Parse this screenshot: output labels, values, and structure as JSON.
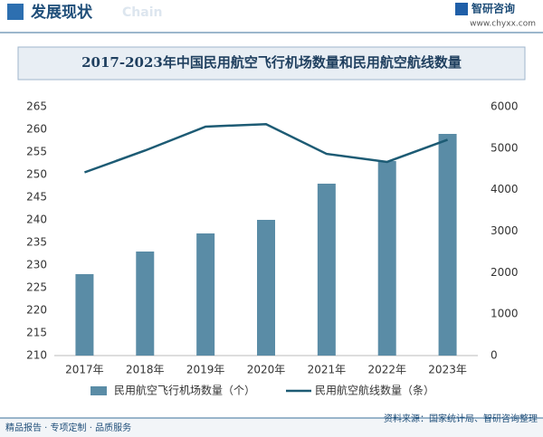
{
  "header": {
    "title": "发展现状",
    "watermark": "Chain",
    "logo": "智研咨询",
    "url": "www.chyxx.com"
  },
  "chart_data": {
    "type": "bar",
    "title": "2017-2023年中国民用航空飞行机场数量和民用航空航线数量",
    "categories": [
      "2017年",
      "2018年",
      "2019年",
      "2020年",
      "2021年",
      "2022年",
      "2023年"
    ],
    "series": [
      {
        "name": "民用航空飞行机场数量（个）",
        "type": "bar",
        "color": "#5a8ca6",
        "values": [
          228,
          233,
          237,
          240,
          248,
          253,
          259
        ]
      },
      {
        "name": "民用航空航线数量（条）",
        "type": "line",
        "axis": "y2",
        "color": "#1d5b74",
        "values": [
          4418,
          4945,
          5521,
          5581,
          4864,
          4670,
          5206
        ]
      }
    ],
    "ylim": [
      210,
      265
    ],
    "yticks": [
      210,
      215,
      220,
      225,
      230,
      235,
      240,
      245,
      250,
      255,
      260,
      265
    ],
    "y2lim": [
      0,
      6000
    ],
    "y2ticks": [
      0,
      1000,
      2000,
      3000,
      4000,
      5000,
      6000
    ]
  },
  "footer": {
    "left": "精品报告 · 专项定制 · 品质服务",
    "source": "资料来源：国家统计局、智研咨询整理"
  }
}
